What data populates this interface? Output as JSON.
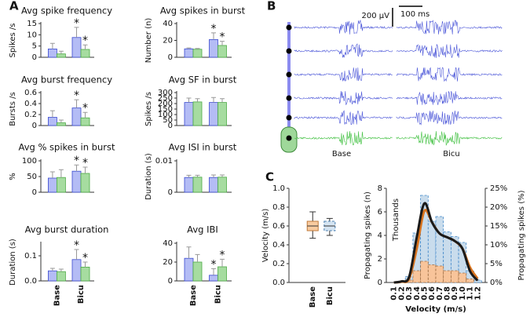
{
  "panel_labels": [
    "A",
    "B",
    "C"
  ],
  "traces_panel": {
    "scale_voltage": "200 µV",
    "scale_time": "100 ms",
    "conditions": [
      "Base",
      "Bicu"
    ]
  },
  "chart_data": [
    {
      "type": "bar",
      "title": "Avg spike frequency",
      "y_label": "Spikes /s",
      "categories": [
        null,
        null
      ],
      "ylim": [
        0,
        15
      ],
      "yticks": [
        0,
        5,
        10,
        15
      ],
      "series": [
        {
          "color": "#b4bcf5",
          "values": [
            3.7,
            8.8
          ],
          "errors": [
            2.5,
            4.5
          ]
        },
        {
          "color": "#a6dca0",
          "values": [
            1.5,
            3.5
          ],
          "errors": [
            1.2,
            2
          ]
        }
      ],
      "annotations": [
        "*",
        "*"
      ]
    },
    {
      "type": "bar",
      "title": "Avg spikes in burst",
      "y_label": "Number (n)",
      "categories": [
        null,
        null
      ],
      "ylim": [
        0,
        40
      ],
      "yticks": [
        0,
        20,
        40
      ],
      "series": [
        {
          "color": "#b4bcf5",
          "values": [
            10,
            21
          ],
          "errors": [
            1,
            8
          ]
        },
        {
          "color": "#a6dca0",
          "values": [
            9.5,
            14
          ],
          "errors": [
            1,
            5
          ]
        }
      ],
      "annotations": [
        "*",
        "*"
      ]
    },
    {
      "type": "bar",
      "title": "Avg burst frequency",
      "y_label": "Bursts /s",
      "categories": [
        null,
        null
      ],
      "ylim": [
        0,
        0.6
      ],
      "yticks": [
        0,
        0.2,
        0.4,
        0.6
      ],
      "series": [
        {
          "color": "#b4bcf5",
          "values": [
            0.15,
            0.32
          ],
          "errors": [
            0.12,
            0.15
          ]
        },
        {
          "color": "#a6dca0",
          "values": [
            0.05,
            0.14
          ],
          "errors": [
            0.05,
            0.1
          ]
        }
      ],
      "annotations": [
        "*",
        "*"
      ]
    },
    {
      "type": "bar",
      "title": "Avg SF in burst",
      "y_label": "Spikes /s",
      "categories": [
        null,
        null
      ],
      "ylim": [
        0,
        300
      ],
      "yticks": [
        0,
        50,
        100,
        150,
        200,
        250,
        300
      ],
      "series": [
        {
          "color": "#b4bcf5",
          "values": [
            210,
            210
          ],
          "errors": [
            40,
            45
          ]
        },
        {
          "color": "#a6dca0",
          "values": [
            215,
            210
          ],
          "errors": [
            30,
            35
          ]
        }
      ]
    },
    {
      "type": "bar",
      "title": "Avg % spikes in burst",
      "y_label": "%",
      "categories": [
        null,
        null
      ],
      "ylim": [
        0,
        100
      ],
      "yticks": [
        0,
        50,
        100
      ],
      "series": [
        {
          "color": "#b4bcf5",
          "values": [
            45,
            67
          ],
          "errors": [
            20,
            20
          ]
        },
        {
          "color": "#a6dca0",
          "values": [
            47,
            60
          ],
          "errors": [
            25,
            20
          ]
        }
      ],
      "annotations": [
        "*",
        "*"
      ]
    },
    {
      "type": "bar",
      "title": "Avg ISI in burst",
      "y_label": "Duration (s)",
      "categories": [
        null,
        null
      ],
      "ylim": [
        0,
        0.01
      ],
      "yticks": [
        0,
        0.01
      ],
      "series": [
        {
          "color": "#b4bcf5",
          "values": [
            0.0047,
            0.0047
          ],
          "errors": [
            0.0007,
            0.0008
          ]
        },
        {
          "color": "#a6dca0",
          "values": [
            0.0048,
            0.0048
          ],
          "errors": [
            0.0006,
            0.0007
          ]
        }
      ]
    },
    {
      "type": "bar",
      "title": "Avg burst duration",
      "y_label": "Duration (s)",
      "categories": [
        "Base",
        "Bicu"
      ],
      "ylim": [
        0,
        0.15
      ],
      "yticks": [
        {
          "value": 0,
          "label": "0.0"
        },
        0.1
      ],
      "series": [
        {
          "color": "#b4bcf5",
          "values": [
            0.04,
            0.085
          ],
          "errors": [
            0.01,
            0.04
          ]
        },
        {
          "color": "#a6dca0",
          "values": [
            0.037,
            0.055
          ],
          "errors": [
            0.01,
            0.02
          ]
        }
      ],
      "annotations": [
        "*",
        "*"
      ]
    },
    {
      "type": "bar",
      "title": "Avg IBI",
      "categories": [
        "Base",
        "Bicu"
      ],
      "ylim": [
        0,
        40
      ],
      "yticks": [
        0,
        20,
        40
      ],
      "series": [
        {
          "color": "#b4bcf5",
          "values": [
            24,
            6
          ],
          "errors": [
            12,
            7
          ]
        },
        {
          "color": "#a6dca0",
          "values": [
            20,
            15
          ],
          "errors": [
            8,
            8
          ]
        }
      ],
      "annotations": [
        "*",
        "*"
      ]
    },
    {
      "type": "box",
      "y_label": "Velocity (m/s)",
      "categories": [
        "Base",
        "Bicu"
      ],
      "colors": [
        "#f8cba0",
        "#d4e4f2"
      ],
      "ylim": [
        0,
        1
      ],
      "yticks": [
        {
          "value": 0,
          "label": "0.0"
        },
        0.2,
        0.4,
        0.6,
        0.8,
        {
          "value": 1,
          "label": "1.0"
        }
      ],
      "boxes": [
        {
          "min": 0.47,
          "q1": 0.55,
          "median": 0.6,
          "q3": 0.65,
          "max": 0.75
        },
        {
          "min": 0.5,
          "q1": 0.55,
          "median": 0.6,
          "q3": 0.65,
          "max": 0.68
        }
      ]
    },
    {
      "type": "histogram",
      "x_label": "Velocity (m/s)",
      "y_label": "Propagating spikes (n)",
      "y2_label": "Propagating spikes (%)",
      "annotation": "Thousands",
      "categories": [
        "0.1",
        "0.2",
        "0.3",
        "0.4",
        "0.5",
        "0.6",
        "0.7",
        "0.8",
        "0.9",
        "1.0",
        "1.1",
        "1.2"
      ],
      "ylim": [
        0,
        8
      ],
      "yticks": [
        0,
        2,
        4,
        6,
        8
      ],
      "y2lim": [
        0,
        25
      ],
      "y2ticks": [
        {
          "value": 0,
          "label": "0%"
        },
        {
          "value": 5,
          "label": "5%"
        },
        {
          "value": 10,
          "label": "10%"
        },
        {
          "value": 15,
          "label": "15%"
        },
        {
          "value": 20,
          "label": "20%"
        },
        {
          "value": 25,
          "label": "25%"
        }
      ],
      "series": [
        {
          "type": "bar",
          "color": "#c9dcec",
          "values": [
            0,
            0.1,
            0.5,
            4.2,
            7.4,
            5.2,
            5.6,
            4.3,
            3.9,
            3.4,
            1.0,
            0.2
          ]
        },
        {
          "type": "bar",
          "color": "#f8c49a",
          "values": [
            0,
            0,
            0.2,
            1.0,
            1.8,
            1.5,
            1.4,
            1.0,
            1.0,
            0.8,
            0.3,
            0
          ]
        },
        {
          "type": "line",
          "axis": "y2",
          "color": "#d9741f",
          "values": [
            0,
            0.2,
            1,
            9,
            19,
            16,
            13,
            12,
            11,
            9,
            4,
            1
          ]
        },
        {
          "type": "line",
          "axis": "y2",
          "color": "#1a1a1a",
          "values": [
            0,
            0.3,
            1.5,
            12,
            21,
            16,
            13,
            12,
            11,
            9,
            3,
            0.5
          ]
        }
      ]
    }
  ]
}
